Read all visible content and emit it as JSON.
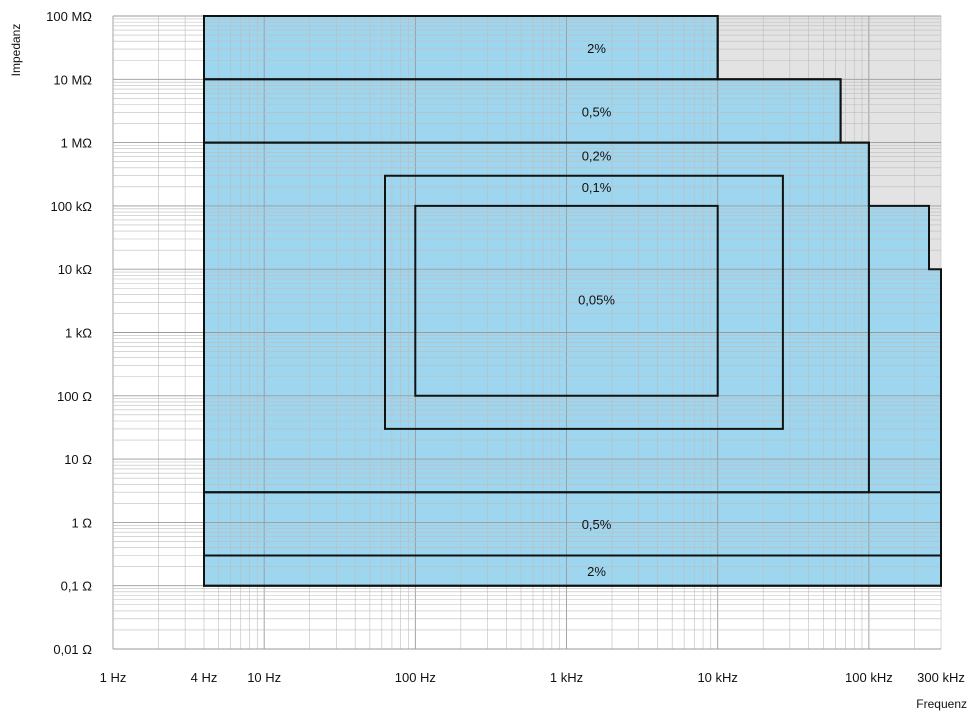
{
  "chart_data": {
    "type": "area",
    "xlabel": "Frequenz",
    "ylabel": "Impedanz",
    "x_scale": "log",
    "y_scale": "log",
    "xlim_hz": [
      1,
      300000
    ],
    "ylim_ohm": [
      0.01,
      100000000
    ],
    "grid": true,
    "x_ticks": [
      {
        "value": 1,
        "label": "1 Hz"
      },
      {
        "value": 4,
        "label": "4 Hz"
      },
      {
        "value": 10,
        "label": "10 Hz"
      },
      {
        "value": 100,
        "label": "100 Hz"
      },
      {
        "value": 1000,
        "label": "1 kHz"
      },
      {
        "value": 10000,
        "label": "10 kHz"
      },
      {
        "value": 100000,
        "label": "100 kHz"
      },
      {
        "value": 300000,
        "label": "300 kHz"
      }
    ],
    "y_ticks": [
      {
        "value": 100000000,
        "label": "100 MΩ"
      },
      {
        "value": 10000000,
        "label": "10 MΩ"
      },
      {
        "value": 1000000,
        "label": "1 MΩ"
      },
      {
        "value": 100000,
        "label": "100 kΩ"
      },
      {
        "value": 10000,
        "label": "10 kΩ"
      },
      {
        "value": 1000,
        "label": "1 kΩ"
      },
      {
        "value": 100,
        "label": "100 Ω"
      },
      {
        "value": 10,
        "label": "10 Ω"
      },
      {
        "value": 1,
        "label": "1 Ω"
      },
      {
        "value": 0.1,
        "label": "0,1 Ω"
      },
      {
        "value": 0.01,
        "label": "0,01 Ω"
      }
    ],
    "gray_region": {
      "points": [
        [
          10000,
          100000000
        ],
        [
          300000,
          100000000
        ],
        [
          300000,
          10000
        ],
        [
          250000,
          10000
        ],
        [
          250000,
          100000
        ],
        [
          100000,
          100000
        ],
        [
          100000,
          1000000
        ],
        [
          65000,
          1000000
        ],
        [
          65000,
          10000000
        ],
        [
          10000,
          10000000
        ]
      ]
    },
    "blue_region": {
      "color": "#9fd6ef",
      "points": [
        [
          4,
          0.1
        ],
        [
          300000,
          0.1
        ],
        [
          300000,
          10000
        ],
        [
          250000,
          10000
        ],
        [
          250000,
          100000
        ],
        [
          100000,
          100000
        ],
        [
          100000,
          1000000
        ],
        [
          65000,
          1000000
        ],
        [
          65000,
          10000000
        ],
        [
          10000,
          10000000
        ],
        [
          10000,
          100000000
        ],
        [
          4,
          100000000
        ]
      ]
    },
    "accuracy_zones": [
      {
        "label": "2%",
        "shape": [
          [
            4,
            10000000
          ],
          [
            10000,
            10000000
          ],
          [
            10000,
            100000000
          ],
          [
            4,
            100000000
          ]
        ],
        "label_at": [
          1000,
          31000000
        ]
      },
      {
        "label": "0,5%",
        "shape": [
          [
            4,
            1000000
          ],
          [
            65000,
            1000000
          ],
          [
            65000,
            10000000
          ],
          [
            4,
            10000000
          ]
        ],
        "label_at": [
          1000,
          3100000
        ]
      },
      {
        "label": "0,2%",
        "shape": [
          [
            4,
            3
          ],
          [
            100000,
            3
          ],
          [
            100000,
            1000000
          ],
          [
            4,
            1000000
          ]
        ],
        "label_at": [
          1000,
          630000
        ]
      },
      {
        "label": "0,1%",
        "shape": [
          [
            63,
            30
          ],
          [
            27000,
            30
          ],
          [
            27000,
            300000
          ],
          [
            63,
            300000
          ]
        ],
        "label_at": [
          1000,
          200000
        ]
      },
      {
        "label": "0,05%",
        "shape": [
          [
            100,
            100
          ],
          [
            10000,
            100
          ],
          [
            10000,
            100000
          ],
          [
            100,
            100000
          ]
        ],
        "label_at": [
          1000,
          3300
        ]
      },
      {
        "label": "0,5%",
        "shape": [
          [
            4,
            0.3
          ],
          [
            300000,
            0.3
          ],
          [
            300000,
            3
          ],
          [
            4,
            3
          ]
        ],
        "label_at": [
          1000,
          0.95
        ]
      },
      {
        "label": "2%",
        "shape": [
          [
            4,
            0.1
          ],
          [
            300000,
            0.1
          ],
          [
            300000,
            0.3
          ],
          [
            4,
            0.3
          ]
        ],
        "label_at": [
          1000,
          0.17
        ]
      }
    ]
  }
}
